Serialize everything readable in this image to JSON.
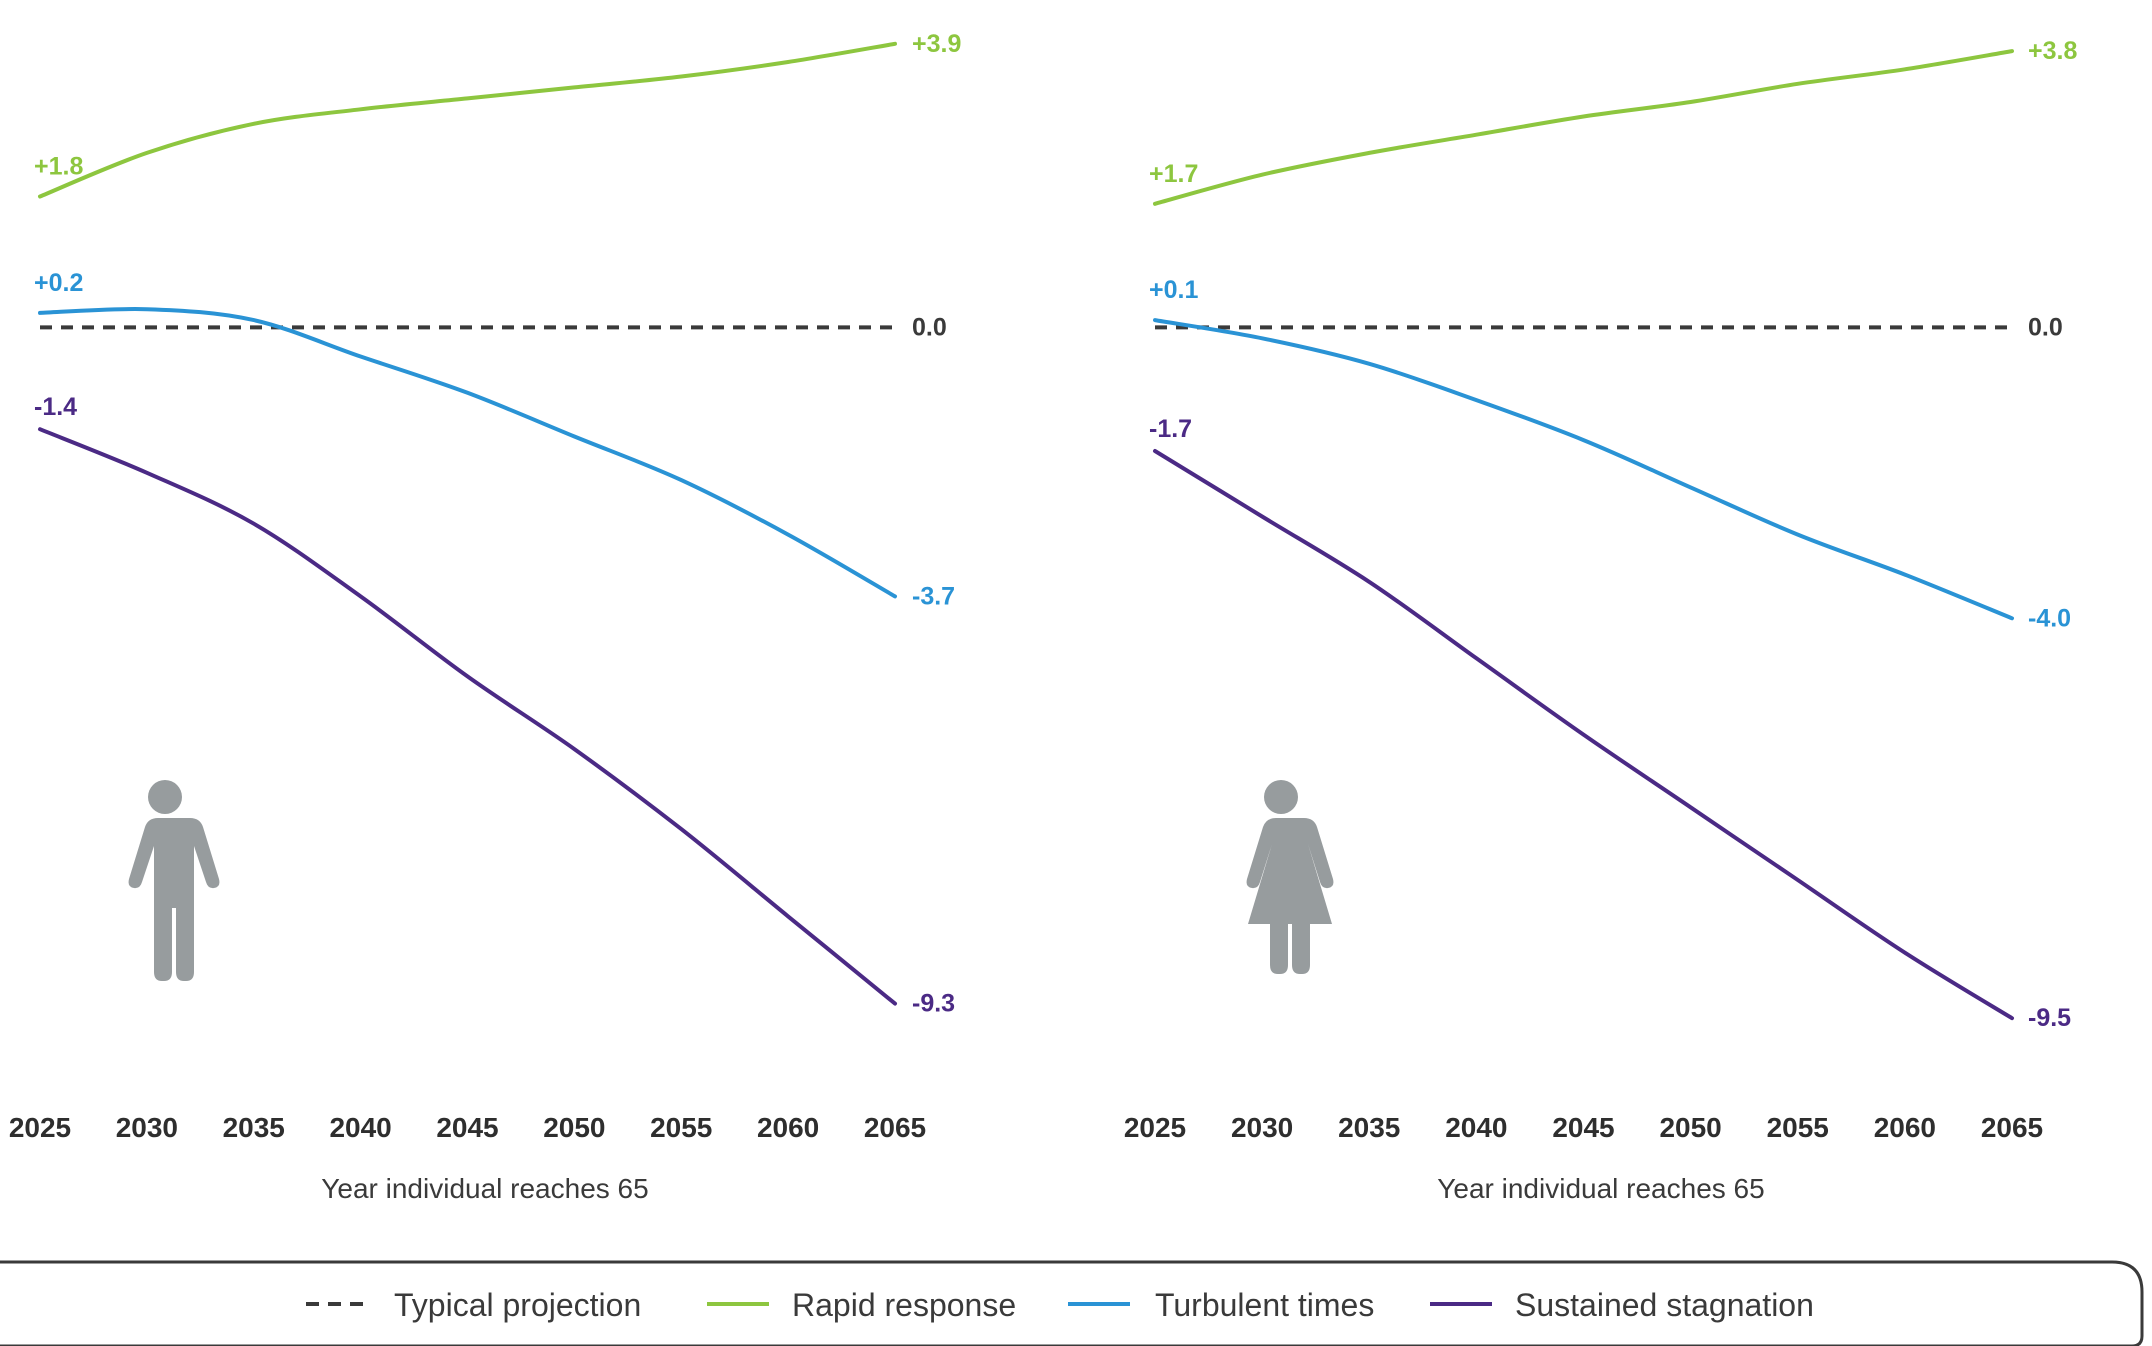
{
  "colors": {
    "typical": "#3a3a3a",
    "rapid": "#8dc63f",
    "turbulent": "#2a93d5",
    "stagnation": "#4b2a85",
    "icon": "#979c9e"
  },
  "legend": [
    {
      "label": "Typical projection",
      "color": "#3a3a3a",
      "style": "dashed"
    },
    {
      "label": "Rapid response",
      "color": "#8dc63f",
      "style": "solid"
    },
    {
      "label": "Turbulent times",
      "color": "#2a93d5",
      "style": "solid"
    },
    {
      "label": "Sustained stagnation",
      "color": "#4b2a85",
      "style": "solid"
    }
  ],
  "chart_data": [
    {
      "type": "line",
      "panel_icon": "male-person-icon",
      "xlabel": "Year individual reaches 65",
      "x": [
        2025,
        2030,
        2035,
        2040,
        2045,
        2050,
        2055,
        2060,
        2065
      ],
      "x_ticks": [
        "2025",
        "2030",
        "2035",
        "2040",
        "2045",
        "2050",
        "2055",
        "2060",
        "2065"
      ],
      "ylim": [
        -9.8,
        4.2
      ],
      "series": [
        {
          "name": "Typical projection",
          "key": "typical",
          "values": [
            0.0,
            0.0,
            0.0,
            0.0,
            0.0,
            0.0,
            0.0,
            0.0,
            0.0
          ],
          "start_label": "",
          "end_label": "0.0"
        },
        {
          "name": "Rapid response",
          "key": "rapid",
          "values": [
            1.8,
            2.4,
            2.8,
            3.0,
            3.15,
            3.3,
            3.45,
            3.65,
            3.9
          ],
          "start_label": "+1.8",
          "end_label": "+3.9"
        },
        {
          "name": "Turbulent times",
          "key": "turbulent",
          "values": [
            0.2,
            0.25,
            0.1,
            -0.4,
            -0.9,
            -1.5,
            -2.1,
            -2.85,
            -3.7
          ],
          "start_label": "+0.2",
          "end_label": "-3.7"
        },
        {
          "name": "Sustained stagnation",
          "key": "stagnation",
          "values": [
            -1.4,
            -2.0,
            -2.7,
            -3.7,
            -4.8,
            -5.8,
            -6.9,
            -8.1,
            -9.3
          ],
          "start_label": "-1.4",
          "end_label": "-9.3"
        }
      ]
    },
    {
      "type": "line",
      "panel_icon": "female-person-icon",
      "xlabel": "Year individual reaches 65",
      "x": [
        2025,
        2030,
        2035,
        2040,
        2045,
        2050,
        2055,
        2060,
        2065
      ],
      "x_ticks": [
        "2025",
        "2030",
        "2035",
        "2040",
        "2045",
        "2050",
        "2055",
        "2060",
        "2065"
      ],
      "ylim": [
        -9.8,
        4.2
      ],
      "series": [
        {
          "name": "Typical projection",
          "key": "typical",
          "values": [
            0.0,
            0.0,
            0.0,
            0.0,
            0.0,
            0.0,
            0.0,
            0.0,
            0.0
          ],
          "start_label": "",
          "end_label": "0.0"
        },
        {
          "name": "Rapid response",
          "key": "rapid",
          "values": [
            1.7,
            2.1,
            2.4,
            2.65,
            2.9,
            3.1,
            3.35,
            3.55,
            3.8
          ],
          "start_label": "+1.7",
          "end_label": "+3.8"
        },
        {
          "name": "Turbulent times",
          "key": "turbulent",
          "values": [
            0.1,
            -0.15,
            -0.5,
            -1.0,
            -1.55,
            -2.2,
            -2.85,
            -3.4,
            -4.0
          ],
          "start_label": "+0.1",
          "end_label": "-4.0"
        },
        {
          "name": "Sustained stagnation",
          "key": "stagnation",
          "values": [
            -1.7,
            -2.6,
            -3.5,
            -4.55,
            -5.6,
            -6.6,
            -7.6,
            -8.6,
            -9.5
          ],
          "start_label": "-1.7",
          "end_label": "-9.5"
        }
      ]
    }
  ]
}
